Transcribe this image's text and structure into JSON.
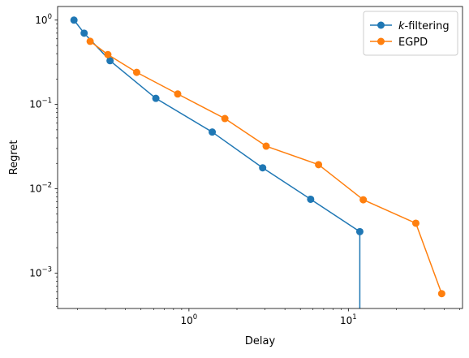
{
  "chart_data": {
    "type": "line",
    "title": "",
    "xlabel": "Delay",
    "ylabel": "Regret",
    "xscale": "log",
    "yscale": "log",
    "xlim": [
      0.15,
      52
    ],
    "ylim": [
      0.00038,
      1.45
    ],
    "grid": false,
    "legend_position": "top-right",
    "x_tick_labels": [
      {
        "value": 1,
        "base": "10",
        "exp": "0"
      },
      {
        "value": 10,
        "base": "10",
        "exp": "1"
      }
    ],
    "y_tick_labels": [
      {
        "value": 1,
        "base": "10",
        "exp": "0"
      },
      {
        "value": 0.1,
        "base": "10",
        "exp": "−1"
      },
      {
        "value": 0.01,
        "base": "10",
        "exp": "−2"
      },
      {
        "value": 0.001,
        "base": "10",
        "exp": "−3"
      }
    ],
    "series": [
      {
        "name": "k-filtering",
        "name_italic": "k",
        "name_rest": "-filtering",
        "color": "#1f77b4",
        "x": [
          0.19,
          0.22,
          0.32,
          0.62,
          1.4,
          2.9,
          5.8,
          11.8,
          11.8
        ],
        "y": [
          1.0,
          0.7,
          0.33,
          0.118,
          0.047,
          0.0177,
          0.0075,
          0.0031,
          0.00038
        ],
        "markers": [
          true,
          true,
          true,
          true,
          true,
          true,
          true,
          true,
          false
        ]
      },
      {
        "name": "EGPD",
        "color": "#ff7f0e",
        "x": [
          0.24,
          0.31,
          0.47,
          0.85,
          1.68,
          3.05,
          6.5,
          12.4,
          26.5,
          38.5
        ],
        "y": [
          0.56,
          0.39,
          0.24,
          0.133,
          0.068,
          0.032,
          0.0193,
          0.0074,
          0.0039,
          0.00057
        ],
        "markers": [
          true,
          true,
          true,
          true,
          true,
          true,
          true,
          true,
          true,
          true
        ]
      }
    ]
  }
}
